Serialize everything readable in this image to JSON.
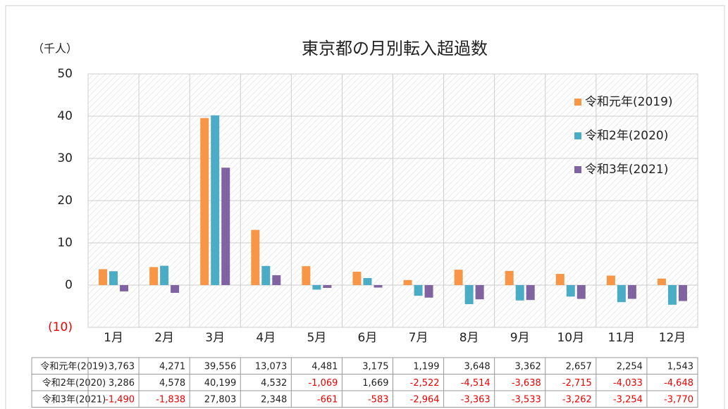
{
  "chart_data": {
    "type": "bar",
    "title": "東京都の月別転入超過数",
    "y_axis_label": "（千人）",
    "categories": [
      "1月",
      "2月",
      "3月",
      "4月",
      "5月",
      "6月",
      "7月",
      "8月",
      "9月",
      "10月",
      "11月",
      "12月"
    ],
    "series": [
      {
        "name": "令和元年(2019)",
        "color": "#f79646",
        "values": [
          3.763,
          4.271,
          39.556,
          13.073,
          4.481,
          3.175,
          1.199,
          3.648,
          3.362,
          2.657,
          2.254,
          1.543
        ],
        "value_labels": [
          "3,763",
          "4,271",
          "39,556",
          "13,073",
          "4,481",
          "3,175",
          "1,199",
          "3,648",
          "3,362",
          "2,657",
          "2,254",
          "1,543"
        ]
      },
      {
        "name": "令和2年(2020)",
        "color": "#4bacc6",
        "values": [
          3.286,
          4.578,
          40.199,
          4.532,
          -1.069,
          1.669,
          -2.522,
          -4.514,
          -3.638,
          -2.715,
          -4.033,
          -4.648
        ],
        "value_labels": [
          "3,286",
          "4,578",
          "40,199",
          "4,532",
          "-1,069",
          "1,669",
          "-2,522",
          "-4,514",
          "-3,638",
          "-2,715",
          "-4,033",
          "-4,648"
        ]
      },
      {
        "name": "令和3年(2021)",
        "color": "#8064a2",
        "values": [
          -1.49,
          -1.838,
          27.803,
          2.348,
          -0.661,
          -0.583,
          -2.964,
          -3.363,
          -3.533,
          -3.262,
          -3.254,
          -3.77
        ],
        "value_labels": [
          "-1,490",
          "-1,838",
          "27,803",
          "2,348",
          "-661",
          "-583",
          "-2,964",
          "-3,363",
          "-3,533",
          "-3,262",
          "-3,254",
          "-3,770"
        ]
      }
    ],
    "ylim": [
      -10,
      50
    ],
    "yticks": [
      {
        "value": -10,
        "label": "(10)"
      },
      0,
      10,
      20,
      30,
      40,
      50
    ],
    "grid": true,
    "legend": "top-right"
  }
}
